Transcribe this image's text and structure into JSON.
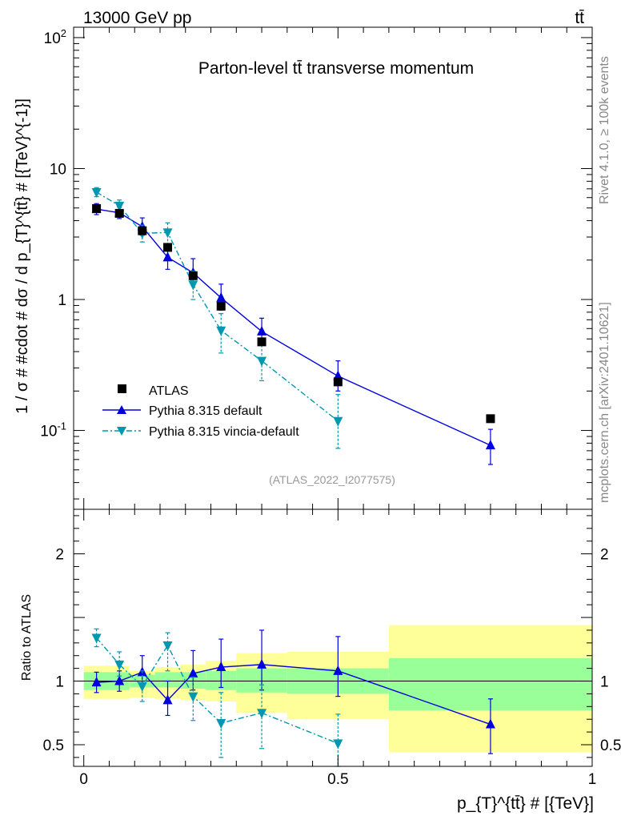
{
  "header": {
    "energy_label": "13000 GeV pp",
    "process_label": "tt̄"
  },
  "side": {
    "rivet_label": "Rivet 4.1.0, ≥ 100k events",
    "mcplots_label": "mcplots.cern.ch [arXiv:2401.10621]"
  },
  "chart_data": [
    {
      "type": "scatter",
      "panel": "main",
      "title": "Parton-level tt̄ transverse momentum",
      "ylabel": "1 / σ # #cdot # dσ / d p_{T}^{tt̄} # [{TeV}^{-1}]",
      "xlabel": "p_{T}^{tt̄} # [{TeV}]",
      "yscale": "log",
      "ylim": [
        0.025,
        120
      ],
      "xlim": [
        -0.02,
        1.0
      ],
      "y_ticks": [
        {
          "value": 0.1,
          "label": "10^-1"
        },
        {
          "value": 1,
          "label": "1"
        },
        {
          "value": 10,
          "label": "10"
        },
        {
          "value": 100,
          "label": "10^2"
        }
      ],
      "analysis_id": "(ATLAS_2022_I2077575)",
      "legend_position": "bottom-left",
      "series": [
        {
          "name": "ATLAS",
          "style": "data",
          "color": "#000000",
          "x": [
            0.025,
            0.07,
            0.115,
            0.165,
            0.215,
            0.27,
            0.35,
            0.5,
            0.8
          ],
          "values": [
            4.95,
            4.55,
            3.35,
            2.5,
            1.52,
            0.89,
            0.475,
            0.235,
            0.123
          ],
          "xerr": [
            0.025,
            0.02,
            0.025,
            0.025,
            0.025,
            0.03,
            0.05,
            0.1,
            0.2
          ]
        },
        {
          "name": "Pythia 8.315 default",
          "style": "solid",
          "color": "#0000dd",
          "x": [
            0.025,
            0.07,
            0.115,
            0.165,
            0.215,
            0.27,
            0.35,
            0.5,
            0.8
          ],
          "values": [
            4.9,
            4.6,
            3.6,
            2.1,
            1.6,
            1.03,
            0.57,
            0.26,
            0.077
          ],
          "err_low": [
            0.45,
            0.45,
            0.5,
            0.4,
            0.3,
            0.2,
            0.11,
            0.06,
            0.022
          ],
          "err_high": [
            0.5,
            0.5,
            0.6,
            0.5,
            0.45,
            0.28,
            0.15,
            0.08,
            0.025
          ]
        },
        {
          "name": "Pythia 8.315 vincia-default",
          "style": "dashdot",
          "color": "#0097b0",
          "x": [
            0.025,
            0.07,
            0.115,
            0.165,
            0.215,
            0.27,
            0.35,
            0.5,
            0.8
          ],
          "values": [
            6.6,
            5.2,
            3.2,
            3.25,
            1.3,
            0.58,
            0.34,
            0.118,
            null
          ],
          "err_low": [
            0.5,
            0.5,
            0.45,
            0.6,
            0.3,
            0.19,
            0.1,
            0.045,
            null
          ],
          "err_high": [
            0.55,
            0.55,
            0.5,
            0.6,
            0.35,
            0.2,
            0.11,
            0.07,
            null
          ]
        }
      ]
    },
    {
      "type": "scatter",
      "panel": "ratio",
      "ylabel": "Ratio to ATLAS",
      "ylim": [
        0.33,
        2.35
      ],
      "xlim": [
        -0.02,
        1.0
      ],
      "y_ticks": [
        {
          "value": 0.5,
          "label": "0.5"
        },
        {
          "value": 1,
          "label": "1"
        },
        {
          "value": 2,
          "label": "2"
        }
      ],
      "x_ticks": [
        {
          "value": 0,
          "label": "0"
        },
        {
          "value": 0.5,
          "label": "0.5"
        },
        {
          "value": 1,
          "label": "1"
        }
      ],
      "bands": [
        {
          "x0": 0.0,
          "x1": 0.05,
          "inner": [
            0.93,
            1.07
          ],
          "outer": [
            0.86,
            1.12
          ]
        },
        {
          "x0": 0.05,
          "x1": 0.09,
          "inner": [
            0.93,
            1.07
          ],
          "outer": [
            0.86,
            1.12
          ]
        },
        {
          "x0": 0.09,
          "x1": 0.14,
          "inner": [
            0.95,
            1.05
          ],
          "outer": [
            0.87,
            1.08
          ]
        },
        {
          "x0": 0.14,
          "x1": 0.19,
          "inner": [
            0.95,
            1.07
          ],
          "outer": [
            0.86,
            1.11
          ]
        },
        {
          "x0": 0.19,
          "x1": 0.24,
          "inner": [
            0.94,
            1.07
          ],
          "outer": [
            0.85,
            1.13
          ]
        },
        {
          "x0": 0.24,
          "x1": 0.3,
          "inner": [
            0.93,
            1.08
          ],
          "outer": [
            0.84,
            1.16
          ]
        },
        {
          "x0": 0.3,
          "x1": 0.4,
          "inner": [
            0.91,
            1.1
          ],
          "outer": [
            0.75,
            1.22
          ]
        },
        {
          "x0": 0.4,
          "x1": 0.6,
          "inner": [
            0.9,
            1.1
          ],
          "outer": [
            0.7,
            1.23
          ]
        },
        {
          "x0": 0.6,
          "x1": 1.0,
          "inner": [
            0.77,
            1.18
          ],
          "outer": [
            0.44,
            1.44
          ]
        }
      ],
      "series": [
        {
          "name": "Pythia 8.315 default",
          "style": "solid",
          "color": "#0000dd",
          "x": [
            0.025,
            0.07,
            0.115,
            0.165,
            0.215,
            0.27,
            0.35,
            0.5,
            0.8
          ],
          "values": [
            0.99,
            1.0,
            1.07,
            0.85,
            1.06,
            1.11,
            1.13,
            1.08,
            0.66
          ],
          "err_low": [
            0.08,
            0.08,
            0.1,
            0.12,
            0.13,
            0.16,
            0.2,
            0.2,
            0.23
          ],
          "err_high": [
            0.08,
            0.08,
            0.13,
            0.15,
            0.18,
            0.22,
            0.27,
            0.27,
            0.2
          ]
        },
        {
          "name": "Pythia 8.315 vincia-default",
          "style": "dashdot",
          "color": "#0097b0",
          "x": [
            0.025,
            0.07,
            0.115,
            0.165,
            0.215,
            0.27,
            0.35,
            0.5
          ],
          "values": [
            1.34,
            1.13,
            0.96,
            1.28,
            0.88,
            0.67,
            0.75,
            0.51
          ],
          "err_low": [
            0.07,
            0.09,
            0.12,
            0.2,
            0.19,
            0.27,
            0.28,
            0.18
          ],
          "err_high": [
            0.07,
            0.1,
            0.12,
            0.1,
            0.15,
            0.24,
            0.22,
            0.23
          ]
        }
      ]
    }
  ]
}
